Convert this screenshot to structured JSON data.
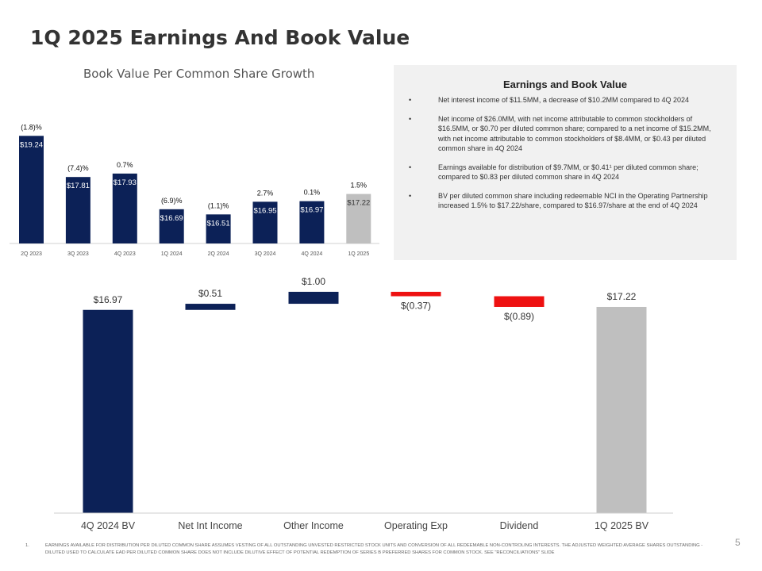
{
  "slide": {
    "title": "1Q 2025 Earnings And Book Value",
    "page_number": "5",
    "footnote_number": "1.",
    "footnote": "EARNINGS AVAILABLE FOR DISTRIBUTION PER DILUTED COMMON SHARE ASSUMES VESTING OF ALL OUTSTANDING UNVESTED RESTRICTED STOCK UNITS AND CONVERSION OF ALL REDEEMABLE NON-CONTROLING INTERESTS. THE ADJUSTED WEIGHTED AVERAGE SHARES OUTSTANDING - DILUTED USED TO CALCULATE EAD PER DILUTED COMMON SHARE DOES NOT INCLUDE DILUTIVE EFFECT OF POTENTIAL REDEMPTION OF SERIES B PREFERRED SHARES FOR COMMON STOCK. SEE \"RECONCILIATIONS\" SLIDE"
  },
  "panel": {
    "title": "Earnings and Book Value",
    "bullets": [
      "Net interest income of $11.5MM, a decrease of $10.2MM compared to 4Q 2024",
      "Net income of $26.0MM, with net income attributable to common stockholders of $16.5MM, or $0.70 per diluted common share; compared to a net income of $15.2MM, with net income attributable to common stockholders of $8.4MM, or $0.43 per diluted common share in 4Q 2024",
      "Earnings available for distribution of $9.7MM, or $0.41¹ per diluted common share; compared to $0.83 per diluted common share in 4Q 2024",
      "BV per diluted common share including redeemable NCI in the Operating Partnership increased 1.5% to $17.22/share, compared to $16.97/share at the end of 4Q 2024"
    ]
  },
  "colors": {
    "navy": "#0c2157",
    "gray": "#bfbfbf",
    "red": "#ee1111"
  },
  "chart_data": [
    {
      "type": "bar",
      "title": "Book Value Per Common Share Growth",
      "categories": [
        "2Q 2023",
        "3Q 2023",
        "4Q 2023",
        "1Q 2024",
        "2Q 2024",
        "3Q 2024",
        "4Q 2024",
        "1Q 2025"
      ],
      "values": [
        19.24,
        17.81,
        17.93,
        16.69,
        16.51,
        16.95,
        16.97,
        17.22
      ],
      "value_labels": [
        "$19.24",
        "$17.81",
        "$17.93",
        "$16.69",
        "$16.51",
        "$16.95",
        "$16.97",
        "$17.22"
      ],
      "growth_labels": [
        "(1.8)%",
        "(7.4)%",
        "0.7%",
        "(6.9)%",
        "(1.1)%",
        "2.7%",
        "0.1%",
        "1.5%"
      ],
      "highlight_last": true,
      "ylim": [
        15.5,
        19.8
      ]
    },
    {
      "type": "bar",
      "subtype": "waterfall",
      "categories": [
        "4Q 2024 BV",
        "Net Int Income",
        "Other Income",
        "Operating Exp",
        "Dividend",
        "1Q 2025 BV"
      ],
      "values": [
        16.97,
        0.51,
        1.0,
        -0.37,
        -0.89,
        17.22
      ],
      "value_labels": [
        "$16.97",
        "$0.51",
        "$1.00",
        "$(0.37)",
        "$(0.89)",
        "$17.22"
      ],
      "kinds": [
        "total",
        "increase",
        "increase",
        "decrease",
        "decrease",
        "total"
      ],
      "ylim": [
        0,
        20.5
      ]
    }
  ]
}
